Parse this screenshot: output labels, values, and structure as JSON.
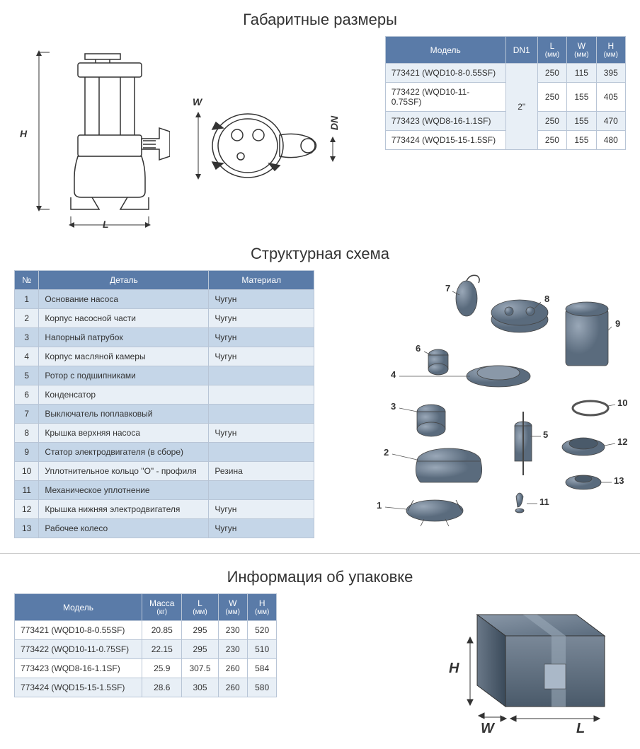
{
  "colors": {
    "header_bg": "#5a7ba8",
    "header_text": "#ffffff",
    "row_alt_light": "#e8eff6",
    "row_alt_dark": "#c5d6e8",
    "border": "#b8c5d6",
    "drawing_fill": "#6a7c8f",
    "drawing_line": "#333333"
  },
  "sections": {
    "dimensions": {
      "title": "Габаритные размеры",
      "headers": [
        "Модель",
        "DN1",
        "L",
        "W",
        "H"
      ],
      "sub_headers": [
        "",
        "",
        "(мм)",
        "(мм)",
        "(мм)"
      ],
      "dn_value": "2\"",
      "rows": [
        {
          "model": "773421 (WQD10-8-0.55SF)",
          "l": "250",
          "w": "115",
          "h": "395"
        },
        {
          "model": "773422 (WQD10-11-0.75SF)",
          "l": "250",
          "w": "155",
          "h": "405"
        },
        {
          "model": "773423 (WQD8-16-1.1SF)",
          "l": "250",
          "w": "155",
          "h": "470"
        },
        {
          "model": "773424 (WQD15-15-1.5SF)",
          "l": "250",
          "w": "155",
          "h": "480"
        }
      ],
      "labels": {
        "H": "H",
        "L": "L",
        "W": "W",
        "DN": "DN"
      }
    },
    "structure": {
      "title": "Структурная схема",
      "headers": [
        "№",
        "Деталь",
        "Материал"
      ],
      "rows": [
        {
          "n": "1",
          "part": "Основание насоса",
          "mat": "Чугун"
        },
        {
          "n": "2",
          "part": "Корпус насосной части",
          "mat": "Чугун"
        },
        {
          "n": "3",
          "part": "Напорный патрубок",
          "mat": "Чугун"
        },
        {
          "n": "4",
          "part": "Корпус масляной камеры",
          "mat": "Чугун"
        },
        {
          "n": "5",
          "part": "Ротор с подшипниками",
          "mat": ""
        },
        {
          "n": "6",
          "part": "Конденсатор",
          "mat": ""
        },
        {
          "n": "7",
          "part": "Выключатель поплавковый",
          "mat": ""
        },
        {
          "n": "8",
          "part": "Крышка верхняя насоса",
          "mat": "Чугун"
        },
        {
          "n": "9",
          "part": "Статор электродвигателя (в сборе)",
          "mat": ""
        },
        {
          "n": "10",
          "part": "Уплотнительное кольцо \"О\" -  профиля",
          "mat": "Резина"
        },
        {
          "n": "11",
          "part": "Механическое уплотнение",
          "mat": ""
        },
        {
          "n": "12",
          "part": "Крышка нижняя электродвигателя",
          "mat": "Чугун"
        },
        {
          "n": "13",
          "part": "Рабочее колесо",
          "mat": "Чугун"
        }
      ]
    },
    "packaging": {
      "title": "Информация об упаковке",
      "headers": [
        "Модель",
        "Масса",
        "L",
        "W",
        "H"
      ],
      "sub_headers": [
        "",
        "(кг)",
        "(мм)",
        "(мм)",
        "(мм)"
      ],
      "rows": [
        {
          "model": "773421 (WQD10-8-0.55SF)",
          "mass": "20.85",
          "l": "295",
          "w": "230",
          "h": "520"
        },
        {
          "model": "773422 (WQD10-11-0.75SF)",
          "mass": "22.15",
          "l": "295",
          "w": "230",
          "h": "510"
        },
        {
          "model": "773423 (WQD8-16-1.1SF)",
          "mass": "25.9",
          "l": "307.5",
          "w": "260",
          "h": "584"
        },
        {
          "model": "773424 (WQD15-15-1.5SF)",
          "mass": "28.6",
          "l": "305",
          "w": "260",
          "h": "580"
        }
      ],
      "labels": {
        "H": "H",
        "W": "W",
        "L": "L"
      }
    }
  }
}
